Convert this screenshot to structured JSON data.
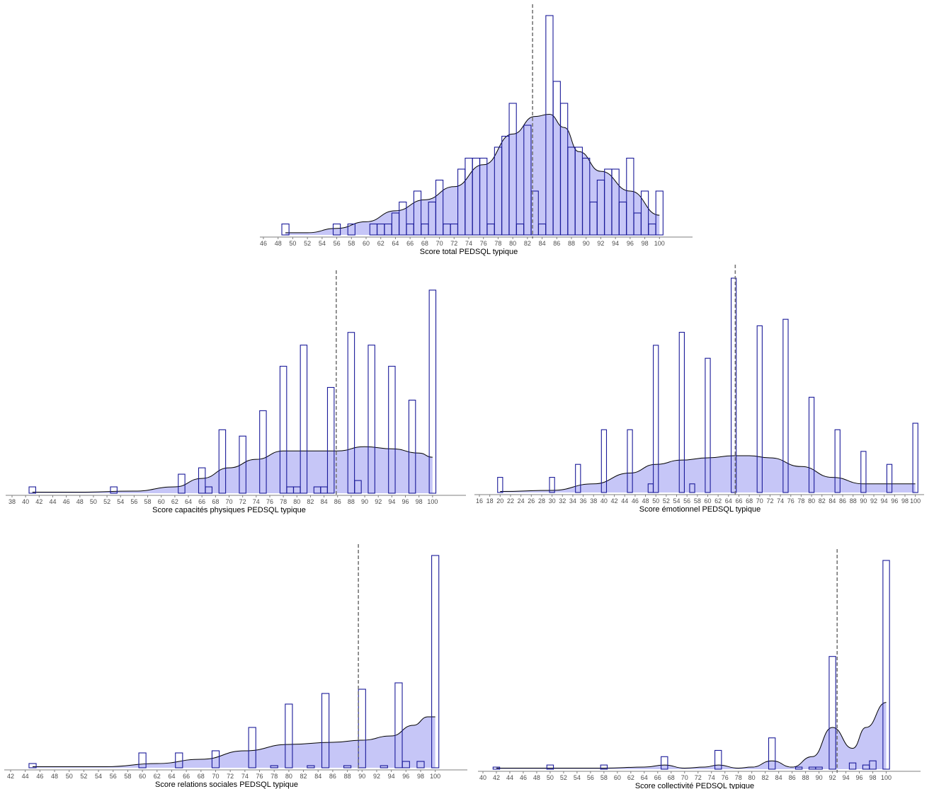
{
  "chart_data": [
    {
      "id": "total",
      "type": "histogram",
      "xlabel": "Score total PEDSQL typique",
      "xlim": [
        46,
        102
      ],
      "tick_start": 46,
      "tick_end": 100,
      "tick_step": 2,
      "mean_line": 82.7,
      "bars": [
        [
          49,
          0.05
        ],
        [
          56,
          0.05
        ],
        [
          58,
          0.05
        ],
        [
          61,
          0.05
        ],
        [
          62,
          0.05
        ],
        [
          63,
          0.05
        ],
        [
          64,
          0.1
        ],
        [
          65,
          0.15
        ],
        [
          66,
          0.05
        ],
        [
          67,
          0.2
        ],
        [
          68,
          0.05
        ],
        [
          69,
          0.15
        ],
        [
          70,
          0.25
        ],
        [
          71,
          0.05
        ],
        [
          72,
          0.05
        ],
        [
          73,
          0.3
        ],
        [
          74,
          0.35
        ],
        [
          75,
          0.35
        ],
        [
          76,
          0.35
        ],
        [
          77,
          0.05
        ],
        [
          78,
          0.4
        ],
        [
          79,
          0.45
        ],
        [
          80,
          0.6
        ],
        [
          81,
          0.05
        ],
        [
          82,
          0.5
        ],
        [
          83,
          0.2
        ],
        [
          84,
          0.05
        ],
        [
          85,
          1.0
        ],
        [
          86,
          0.7
        ],
        [
          87,
          0.6
        ],
        [
          88,
          0.4
        ],
        [
          89,
          0.4
        ],
        [
          90,
          0.35
        ],
        [
          91,
          0.15
        ],
        [
          92,
          0.25
        ],
        [
          93,
          0.3
        ],
        [
          94,
          0.3
        ],
        [
          95,
          0.15
        ],
        [
          96,
          0.35
        ],
        [
          97,
          0.1
        ],
        [
          98,
          0.2
        ],
        [
          99,
          0.05
        ],
        [
          100,
          0.2
        ]
      ],
      "density_x": [
        49,
        52,
        56,
        60,
        64,
        68,
        72,
        76,
        80,
        83,
        85,
        87,
        89,
        92,
        96,
        100
      ],
      "density_y": [
        0.01,
        0.01,
        0.03,
        0.06,
        0.11,
        0.16,
        0.22,
        0.32,
        0.46,
        0.54,
        0.55,
        0.49,
        0.38,
        0.29,
        0.2,
        0.09
      ]
    },
    {
      "id": "physique",
      "type": "histogram",
      "xlabel": "Score capacités physiques PEDSQL typique",
      "xlim": [
        38,
        102
      ],
      "tick_start": 38,
      "tick_end": 100,
      "tick_step": 2,
      "mean_line": 85.8,
      "bars": [
        [
          41,
          0.03
        ],
        [
          53,
          0.03
        ],
        [
          63,
          0.09
        ],
        [
          66,
          0.12
        ],
        [
          67,
          0.03
        ],
        [
          69,
          0.3
        ],
        [
          72,
          0.27
        ],
        [
          75,
          0.39
        ],
        [
          78,
          0.6
        ],
        [
          79,
          0.03
        ],
        [
          80,
          0.03
        ],
        [
          81,
          0.7
        ],
        [
          83,
          0.03
        ],
        [
          84,
          0.03
        ],
        [
          85,
          0.5
        ],
        [
          88,
          0.76
        ],
        [
          89,
          0.06
        ],
        [
          91,
          0.7
        ],
        [
          94,
          0.6
        ],
        [
          97,
          0.44
        ],
        [
          100,
          0.96
        ]
      ],
      "density_x": [
        41,
        48,
        56,
        62,
        66,
        70,
        74,
        78,
        82,
        86,
        90,
        94,
        98,
        100
      ],
      "density_y": [
        0.005,
        0.005,
        0.01,
        0.03,
        0.07,
        0.12,
        0.16,
        0.2,
        0.2,
        0.2,
        0.22,
        0.21,
        0.19,
        0.17
      ]
    },
    {
      "id": "emotionnel",
      "type": "histogram",
      "xlabel": "Score émotionnel PEDSQL typique",
      "xlim": [
        16,
        101
      ],
      "tick_start": 16,
      "tick_end": 100,
      "tick_step": 2,
      "mean_line": 65.3,
      "bars": [
        [
          20,
          0.07
        ],
        [
          30,
          0.07
        ],
        [
          35,
          0.13
        ],
        [
          40,
          0.29
        ],
        [
          45,
          0.29
        ],
        [
          49,
          0.04
        ],
        [
          50,
          0.68
        ],
        [
          55,
          0.74
        ],
        [
          57,
          0.04
        ],
        [
          60,
          0.62
        ],
        [
          65,
          0.99
        ],
        [
          70,
          0.77
        ],
        [
          75,
          0.8
        ],
        [
          80,
          0.44
        ],
        [
          85,
          0.29
        ],
        [
          90,
          0.19
        ],
        [
          95,
          0.13
        ],
        [
          100,
          0.32
        ]
      ],
      "density_x": [
        20,
        30,
        38,
        45,
        50,
        55,
        60,
        65,
        68,
        72,
        78,
        84,
        90,
        96,
        100
      ],
      "density_y": [
        0.005,
        0.01,
        0.04,
        0.09,
        0.13,
        0.15,
        0.16,
        0.17,
        0.17,
        0.16,
        0.12,
        0.07,
        0.04,
        0.04,
        0.04
      ]
    },
    {
      "id": "social",
      "type": "histogram",
      "xlabel": "Score relations sociales PEDSQL typique",
      "xlim": [
        42,
        101
      ],
      "tick_start": 42,
      "tick_end": 100,
      "tick_step": 2,
      "mean_line": 89.5,
      "bars": [
        [
          45,
          0.02
        ],
        [
          60,
          0.07
        ],
        [
          65,
          0.07
        ],
        [
          70,
          0.08
        ],
        [
          75,
          0.19
        ],
        [
          78,
          0.01
        ],
        [
          80,
          0.3
        ],
        [
          83,
          0.01
        ],
        [
          85,
          0.35
        ],
        [
          88,
          0.01
        ],
        [
          90,
          0.37
        ],
        [
          93,
          0.01
        ],
        [
          95,
          0.4
        ],
        [
          96,
          0.03
        ],
        [
          98,
          0.03
        ],
        [
          100,
          1.0
        ]
      ],
      "density_x": [
        45,
        55,
        62,
        68,
        74,
        80,
        86,
        90,
        94,
        97,
        99,
        100
      ],
      "density_y": [
        0.005,
        0.005,
        0.02,
        0.04,
        0.08,
        0.11,
        0.12,
        0.13,
        0.15,
        0.2,
        0.24,
        0.24
      ]
    },
    {
      "id": "collectivite",
      "type": "histogram",
      "xlabel": "Score collectivité PEDSQL typique",
      "xlim": [
        40,
        103
      ],
      "tick_start": 40,
      "tick_end": 100,
      "tick_step": 2,
      "mean_line": 92.7,
      "bars": [
        [
          42,
          0.01
        ],
        [
          50,
          0.02
        ],
        [
          58,
          0.02
        ],
        [
          67,
          0.06
        ],
        [
          75,
          0.09
        ],
        [
          83,
          0.15
        ],
        [
          87,
          0.01
        ],
        [
          89,
          0.01
        ],
        [
          90,
          0.01
        ],
        [
          92,
          0.54
        ],
        [
          95,
          0.03
        ],
        [
          97,
          0.02
        ],
        [
          98,
          0.04
        ],
        [
          100,
          1.0
        ]
      ],
      "density_x": [
        42,
        50,
        58,
        64,
        67,
        70,
        73,
        75,
        78,
        80,
        83,
        86,
        89,
        92,
        95,
        97,
        100
      ],
      "density_y": [
        0.005,
        0.005,
        0.005,
        0.01,
        0.02,
        0.005,
        0.01,
        0.02,
        0.005,
        0.01,
        0.04,
        0.01,
        0.06,
        0.2,
        0.1,
        0.2,
        0.32
      ]
    }
  ]
}
